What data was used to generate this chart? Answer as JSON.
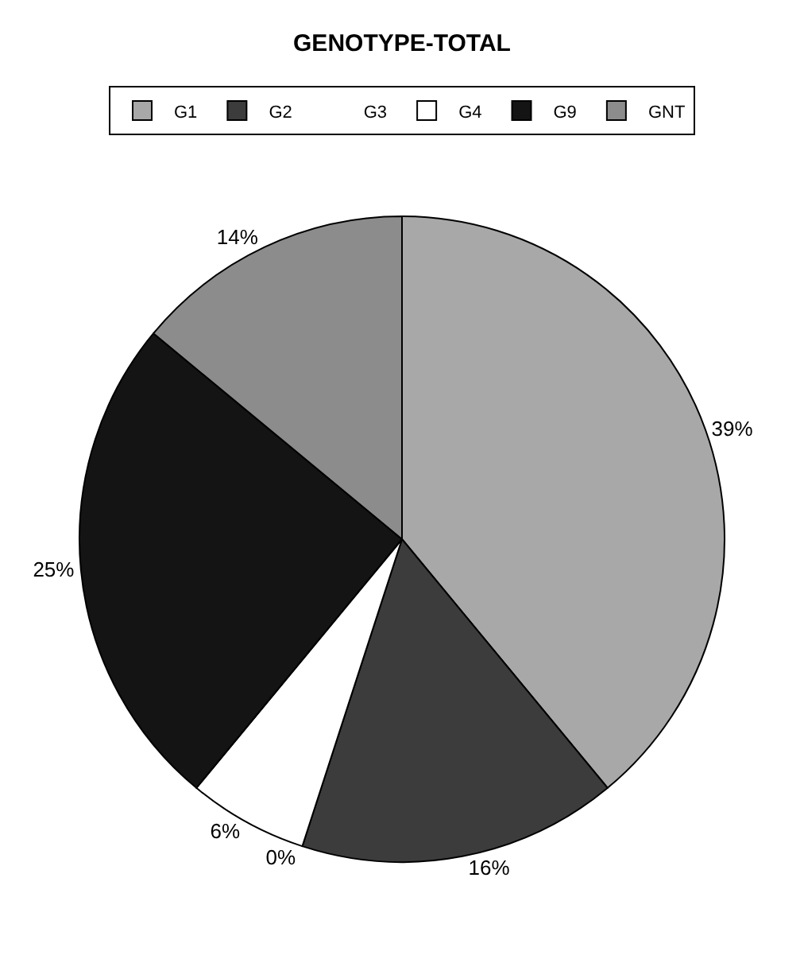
{
  "chart_data": {
    "type": "pie",
    "title": "GENOTYPE-TOTAL",
    "categories": [
      "G1",
      "G2",
      "G3",
      "G4",
      "G9",
      "GNT"
    ],
    "values": [
      39,
      16,
      0,
      6,
      25,
      14
    ],
    "colors": [
      "#a8a8a8",
      "#3c3c3c",
      "#ffffff",
      "#ffffff",
      "#141414",
      "#8c8c8c"
    ],
    "value_labels": [
      "39%",
      "16%",
      "0%",
      "6%",
      "25%",
      "14%"
    ],
    "legend": "top"
  }
}
